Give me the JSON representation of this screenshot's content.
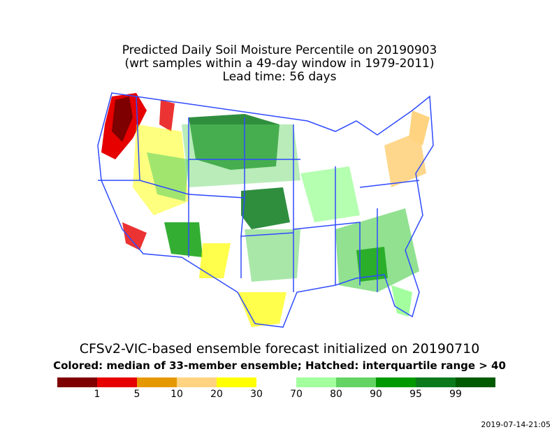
{
  "title": {
    "line1": "Predicted Daily Soil Moisture Percentile on 20190903",
    "line2": "(wrt samples within a 49-day window in 1979-2011)",
    "line3": "Lead time: 56 days"
  },
  "subtitle": "CFSv2-VIC-based ensemble forecast initialized on 20190710",
  "caption": "Colored: median of 33-member ensemble; Hatched: interquartile range > 40",
  "legend": {
    "bins": [
      {
        "color": "#7f0000",
        "low": 0,
        "high": 1
      },
      {
        "color": "#e60000",
        "low": 1,
        "high": 5
      },
      {
        "color": "#e69800",
        "low": 5,
        "high": 10
      },
      {
        "color": "#ffd37f",
        "low": 10,
        "high": 20
      },
      {
        "color": "#ffff00",
        "low": 20,
        "high": 30
      },
      {
        "color": "#ffffff",
        "low": 30,
        "high": 70
      },
      {
        "color": "#a3ff9e",
        "low": 70,
        "high": 80
      },
      {
        "color": "#63d463",
        "low": 80,
        "high": 90
      },
      {
        "color": "#009a00",
        "low": 90,
        "high": 95
      },
      {
        "color": "#0b7a1c",
        "low": 95,
        "high": 99
      },
      {
        "color": "#005a00",
        "low": 99,
        "high": 100
      }
    ],
    "labels": [
      "1",
      "5",
      "10",
      "20",
      "30",
      "70",
      "80",
      "90",
      "95",
      "99"
    ]
  },
  "map": {
    "boundary_color": "#2f4bff",
    "regions": [
      {
        "name": "pacific-northwest-dry",
        "category": "0-1",
        "color": "#7f0000"
      },
      {
        "name": "oregon-coast-dry",
        "category": "1-5",
        "color": "#e60000"
      },
      {
        "name": "northern-plains-wet",
        "category": "95-99",
        "color": "#0b7a1c"
      },
      {
        "name": "kansas-wet",
        "category": "95-99",
        "color": "#0b7a1c"
      },
      {
        "name": "great-lakes-wet",
        "category": "70-80",
        "color": "#a3ff9e"
      },
      {
        "name": "southeast-wet",
        "category": "80-90",
        "color": "#63d463"
      },
      {
        "name": "texas-dry",
        "category": "20-30",
        "color": "#ffff00"
      },
      {
        "name": "northeast-dry",
        "category": "10-20",
        "color": "#ffd37f"
      },
      {
        "name": "arizona-wet",
        "category": "90-95",
        "color": "#009a00"
      },
      {
        "name": "new-mexico-dry",
        "category": "20-30",
        "color": "#ffff00"
      }
    ]
  },
  "timestamp": "2019-07-14-21:05"
}
